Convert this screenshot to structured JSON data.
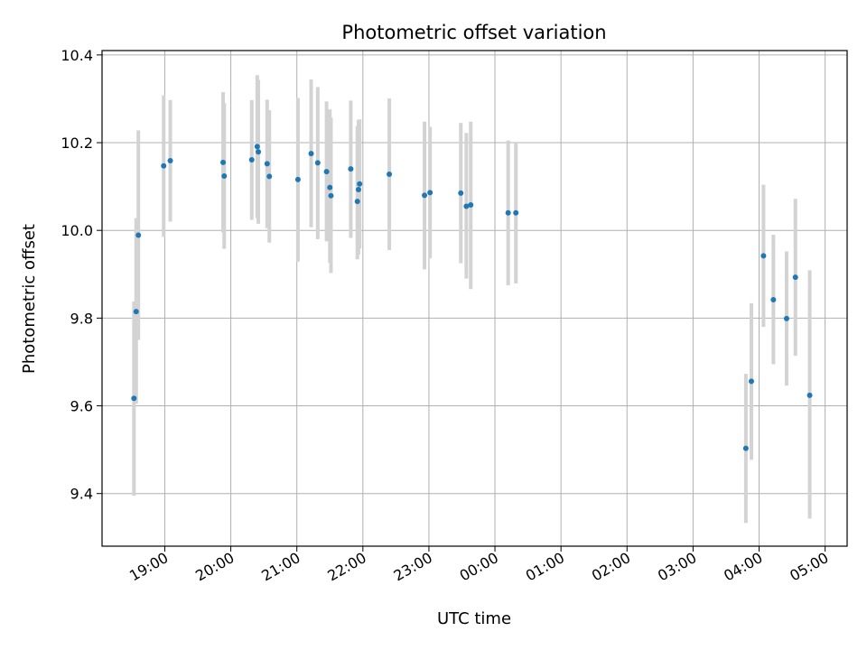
{
  "chart_data": {
    "type": "scatter",
    "title": "Photometric offset variation",
    "xlabel": "UTC time",
    "ylabel": "Photometric offset",
    "x_axis_kind": "time",
    "x_start_time": "18:00",
    "xlim": [
      "18:03",
      "05:20"
    ],
    "ylim": [
      9.28,
      10.41
    ],
    "x_ticks": [
      "19:00",
      "20:00",
      "21:00",
      "22:00",
      "23:00",
      "00:00",
      "01:00",
      "02:00",
      "03:00",
      "04:00",
      "05:00"
    ],
    "y_ticks": [
      9.4,
      9.6,
      9.8,
      10.0,
      10.2,
      10.4
    ],
    "y_tick_labels": [
      "9.4",
      "9.6",
      "9.8",
      "10.0",
      "10.2",
      "10.4"
    ],
    "grid": true,
    "marker_color": "#1f77b4",
    "errorbar_color": "#d3d3d3",
    "points": [
      {
        "t": "18:32",
        "y": 9.617,
        "lo": 9.395,
        "hi": 9.838
      },
      {
        "t": "18:34",
        "y": 9.815,
        "lo": 9.605,
        "hi": 10.028
      },
      {
        "t": "18:36",
        "y": 9.989,
        "lo": 9.75,
        "hi": 10.228
      },
      {
        "t": "18:59",
        "y": 10.147,
        "lo": 9.985,
        "hi": 10.308
      },
      {
        "t": "19:05",
        "y": 10.159,
        "lo": 10.02,
        "hi": 10.297
      },
      {
        "t": "19:53",
        "y": 10.155,
        "lo": 9.995,
        "hi": 10.315
      },
      {
        "t": "19:54",
        "y": 10.124,
        "lo": 9.958,
        "hi": 10.29
      },
      {
        "t": "20:19",
        "y": 10.161,
        "lo": 10.024,
        "hi": 10.297
      },
      {
        "t": "20:24",
        "y": 10.191,
        "lo": 10.028,
        "hi": 10.354
      },
      {
        "t": "20:25",
        "y": 10.179,
        "lo": 10.015,
        "hi": 10.343
      },
      {
        "t": "20:33",
        "y": 10.152,
        "lo": 10.005,
        "hi": 10.298
      },
      {
        "t": "20:35",
        "y": 10.123,
        "lo": 9.972,
        "hi": 10.274
      },
      {
        "t": "21:01",
        "y": 10.116,
        "lo": 9.929,
        "hi": 10.302
      },
      {
        "t": "21:13",
        "y": 10.175,
        "lo": 10.007,
        "hi": 10.344
      },
      {
        "t": "21:19",
        "y": 10.154,
        "lo": 9.98,
        "hi": 10.327
      },
      {
        "t": "21:27",
        "y": 10.134,
        "lo": 9.975,
        "hi": 10.294
      },
      {
        "t": "21:30",
        "y": 10.098,
        "lo": 9.926,
        "hi": 10.276
      },
      {
        "t": "21:31",
        "y": 10.079,
        "lo": 9.903,
        "hi": 10.257
      },
      {
        "t": "21:49",
        "y": 10.14,
        "lo": 9.983,
        "hi": 10.296
      },
      {
        "t": "21:55",
        "y": 10.066,
        "lo": 9.934,
        "hi": 10.238
      },
      {
        "t": "21:56",
        "y": 10.093,
        "lo": 9.945,
        "hi": 10.252
      },
      {
        "t": "21:57",
        "y": 10.106,
        "lo": 9.959,
        "hi": 10.253
      },
      {
        "t": "22:24",
        "y": 10.128,
        "lo": 9.955,
        "hi": 10.301
      },
      {
        "t": "22:56",
        "y": 10.08,
        "lo": 9.911,
        "hi": 10.248
      },
      {
        "t": "23:01",
        "y": 10.086,
        "lo": 9.936,
        "hi": 10.236
      },
      {
        "t": "23:29",
        "y": 10.085,
        "lo": 9.925,
        "hi": 10.245
      },
      {
        "t": "23:34",
        "y": 10.055,
        "lo": 9.89,
        "hi": 10.222
      },
      {
        "t": "23:38",
        "y": 10.058,
        "lo": 9.866,
        "hi": 10.248
      },
      {
        "t": "00:12",
        "y": 10.04,
        "lo": 9.875,
        "hi": 10.205
      },
      {
        "t": "00:19",
        "y": 10.04,
        "lo": 9.879,
        "hi": 10.2
      },
      {
        "t": "03:48",
        "y": 9.503,
        "lo": 9.333,
        "hi": 9.673
      },
      {
        "t": "03:53",
        "y": 9.656,
        "lo": 9.477,
        "hi": 9.834
      },
      {
        "t": "04:04",
        "y": 9.942,
        "lo": 9.78,
        "hi": 10.104
      },
      {
        "t": "04:13",
        "y": 9.842,
        "lo": 9.695,
        "hi": 9.99
      },
      {
        "t": "04:25",
        "y": 9.799,
        "lo": 9.646,
        "hi": 9.952
      },
      {
        "t": "04:33",
        "y": 9.893,
        "lo": 9.714,
        "hi": 10.072
      },
      {
        "t": "04:46",
        "y": 9.624,
        "lo": 9.343,
        "hi": 9.909
      }
    ]
  }
}
